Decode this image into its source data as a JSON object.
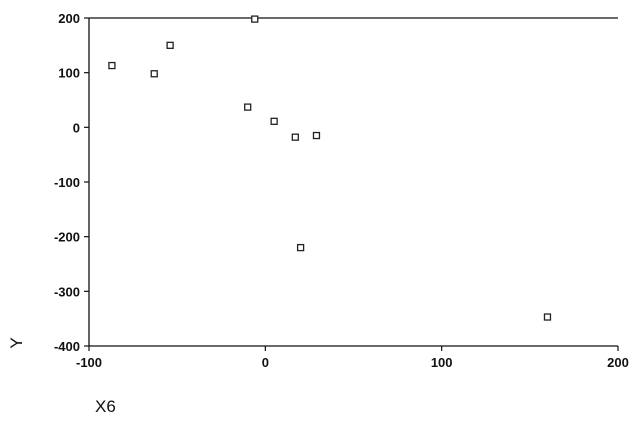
{
  "chart_data": {
    "type": "scatter",
    "title": "",
    "xlabel": "X6",
    "ylabel": "Y",
    "xlim": [
      -100,
      200
    ],
    "ylim": [
      -400,
      200
    ],
    "x_ticks": [
      -100,
      0,
      100,
      200
    ],
    "y_ticks": [
      200,
      100,
      0,
      -100,
      -200,
      -300,
      -400
    ],
    "x_tick_labels": [
      "-100",
      "0",
      "100",
      "200"
    ],
    "y_tick_labels": [
      "200",
      "100",
      "0",
      "-100",
      "-200",
      "-300",
      "-400"
    ],
    "grid": false,
    "marker": "hollow-square",
    "series": [
      {
        "points": [
          {
            "x": -87,
            "y": 113
          },
          {
            "x": -63,
            "y": 98
          },
          {
            "x": -54,
            "y": 150
          },
          {
            "x": -10,
            "y": 37
          },
          {
            "x": -6,
            "y": 198
          },
          {
            "x": 5,
            "y": 11
          },
          {
            "x": 17,
            "y": -18
          },
          {
            "x": 29,
            "y": -15
          },
          {
            "x": 20,
            "y": -220
          },
          {
            "x": 160,
            "y": -347
          }
        ]
      }
    ]
  }
}
